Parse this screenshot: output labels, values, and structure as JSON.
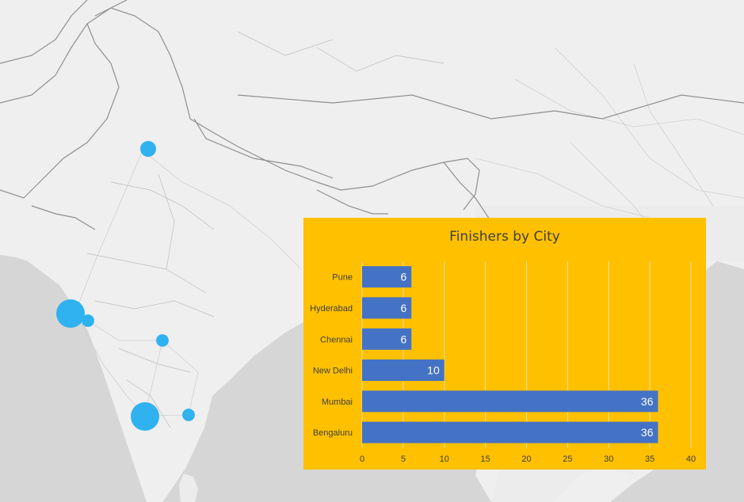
{
  "colors": {
    "land": "#efefef",
    "sea": "#d4d4d4",
    "border": "#8c8c8c",
    "road": "#c8c8c8",
    "bubble": "#2fb2ef",
    "panel": "#ffc000",
    "bar": "#4472c4",
    "grid": "#f2e2a6",
    "text": "#404040",
    "bar_label": "#ffffff"
  },
  "map": {
    "bubbles": [
      {
        "name": "Bengaluru",
        "value": 36
      },
      {
        "name": "Mumbai",
        "value": 36
      },
      {
        "name": "New Delhi",
        "value": 10
      },
      {
        "name": "Chennai",
        "value": 6
      },
      {
        "name": "Hyderabad",
        "value": 6
      },
      {
        "name": "Pune",
        "value": 6
      }
    ]
  },
  "chart_data": {
    "type": "bar",
    "orientation": "horizontal",
    "title": "Finishers by City",
    "categories": [
      "Pune",
      "Hyderabad",
      "Chennai",
      "New Delhi",
      "Mumbai",
      "Bengaluru"
    ],
    "values": [
      6,
      6,
      6,
      10,
      36,
      36
    ],
    "xlabel": "",
    "ylabel": "",
    "xlim": [
      0,
      40
    ],
    "xticks": [
      0,
      5,
      10,
      15,
      20,
      25,
      30,
      35,
      40
    ],
    "grid": true,
    "legend": "none",
    "data_labels": true
  }
}
